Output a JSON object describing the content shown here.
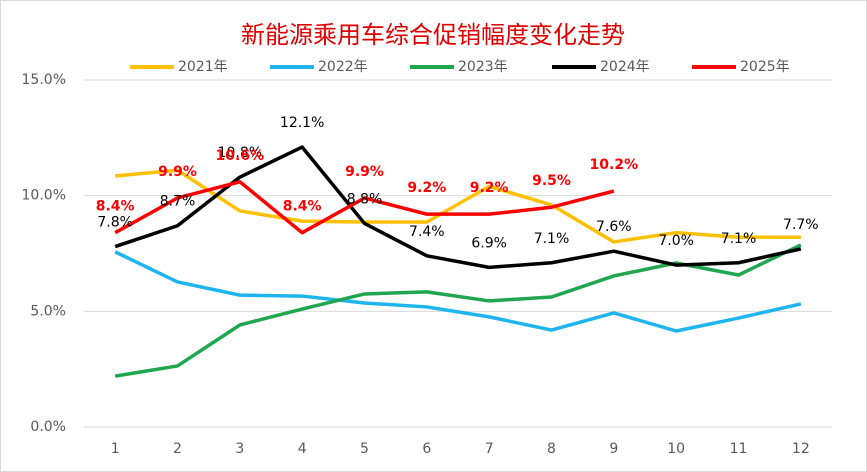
{
  "chart_data": {
    "type": "line",
    "title": "新能源乘用车综合促销幅度变化走势",
    "categories": [
      "1",
      "2",
      "3",
      "4",
      "5",
      "6",
      "7",
      "8",
      "9",
      "10",
      "11",
      "12"
    ],
    "ylim": [
      0,
      15
    ],
    "yticks": [
      {
        "value": 0,
        "label": "0.0%"
      },
      {
        "value": 5,
        "label": "5.0%"
      },
      {
        "value": 10,
        "label": "10.0%"
      },
      {
        "value": 15,
        "label": "15.0%"
      }
    ],
    "grid": true,
    "legend": "top",
    "series": [
      {
        "name": "2021年",
        "color": "#ffc000",
        "values": [
          10.85,
          11.1,
          9.34,
          8.9,
          8.86,
          8.86,
          10.4,
          9.6,
          8.0,
          8.4,
          8.2,
          8.2
        ]
      },
      {
        "name": "2022年",
        "color": "#1eb4f0",
        "values": [
          7.57,
          6.27,
          5.7,
          5.66,
          5.36,
          5.19,
          4.76,
          4.19,
          4.93,
          4.15,
          4.71,
          5.32
        ]
      },
      {
        "name": "2023年",
        "color": "#1fa64f",
        "values": [
          2.2,
          2.64,
          4.41,
          5.1,
          5.75,
          5.84,
          5.45,
          5.62,
          6.53,
          7.09,
          6.57,
          7.87
        ]
      },
      {
        "name": "2024年",
        "color": "#000000",
        "values": [
          7.8,
          8.7,
          10.8,
          12.1,
          8.8,
          7.4,
          6.9,
          7.1,
          7.6,
          7.0,
          7.1,
          7.7
        ],
        "value_labels": [
          "7.8%",
          "8.7%",
          "10.8%",
          "12.1%",
          "8.8%",
          "7.4%",
          "6.9%",
          "7.1%",
          "7.6%",
          "7.0%",
          "7.1%",
          "7.7%"
        ]
      },
      {
        "name": "2025年",
        "color": "#ff0000",
        "values": [
          8.4,
          9.9,
          10.6,
          8.4,
          9.9,
          9.2,
          9.2,
          9.5,
          10.2,
          null,
          null,
          null
        ],
        "value_labels": [
          "8.4%",
          "9.9%",
          "10.6%",
          "8.4%",
          "9.9%",
          "9.2%",
          "9.2%",
          "9.5%",
          "10.2%",
          null,
          null,
          null
        ]
      }
    ]
  }
}
